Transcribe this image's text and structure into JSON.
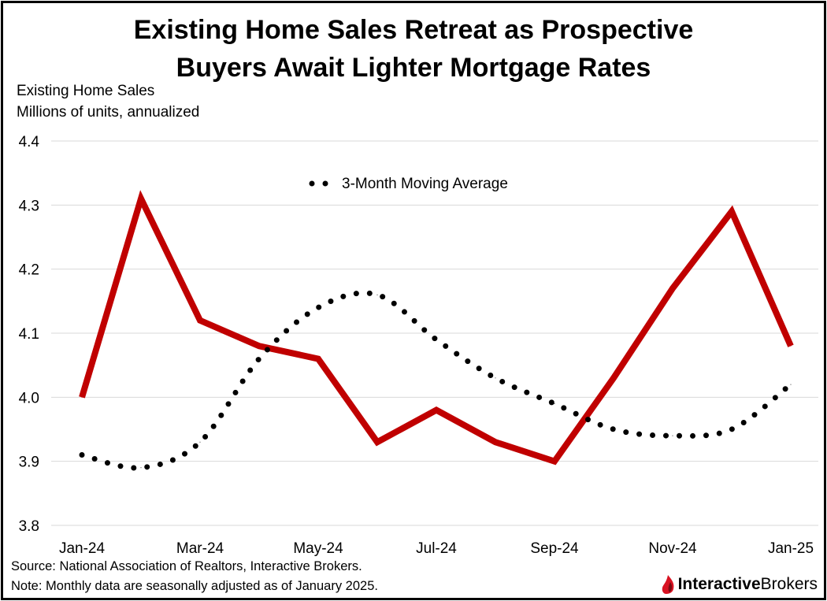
{
  "title": {
    "line1": "Existing Home Sales Retreat as Prospective",
    "line2": "Buyers Await Lighter Mortgage Rates"
  },
  "y_axis": {
    "line1": "Existing Home Sales",
    "line2": "Millions of units, annualized"
  },
  "footer": {
    "source": "Source: National Association of Realtors, Interactive Brokers.",
    "note": "Note: Monthly data are seasonally adjusted as of January 2025."
  },
  "logo": {
    "part1": "Interactive",
    "part2": "Brokers",
    "icon": "flame-logo-icon"
  },
  "colors": {
    "sales": "#C00000",
    "average": "#000000",
    "grid": "#D9D9D9",
    "brand": "#D81222"
  },
  "chart_data": {
    "type": "line",
    "title": "Existing Home Sales Retreat as Prospective Buyers Await Lighter Mortgage Rates",
    "xlabel": "",
    "ylabel": "Existing Home Sales, Millions of units, annualized",
    "categories": [
      "Jan-24",
      "Feb-24",
      "Mar-24",
      "Apr-24",
      "May-24",
      "Jun-24",
      "Jul-24",
      "Aug-24",
      "Sep-24",
      "Oct-24",
      "Nov-24",
      "Dec-24",
      "Jan-25"
    ],
    "x_tick_labels": [
      "Jan-24",
      "Mar-24",
      "May-24",
      "Jul-24",
      "Sep-24",
      "Nov-24",
      "Jan-25"
    ],
    "y_ticks": [
      "3.8",
      "3.9",
      "4.0",
      "4.1",
      "4.2",
      "4.3",
      "4.4"
    ],
    "ylim": [
      3.8,
      4.4
    ],
    "grid": true,
    "legend_position": "top-center",
    "series": [
      {
        "name": "Existing Home Sales",
        "style": "solid",
        "values": [
          4.0,
          4.31,
          4.12,
          4.08,
          4.06,
          3.93,
          3.98,
          3.93,
          3.9,
          4.03,
          4.17,
          4.29,
          4.08
        ]
      },
      {
        "name": "3-Month Moving Average",
        "style": "dotted",
        "values": [
          3.91,
          3.89,
          3.93,
          4.06,
          4.14,
          4.16,
          4.09,
          4.03,
          3.99,
          3.95,
          3.94,
          3.95,
          4.02
        ]
      }
    ]
  }
}
